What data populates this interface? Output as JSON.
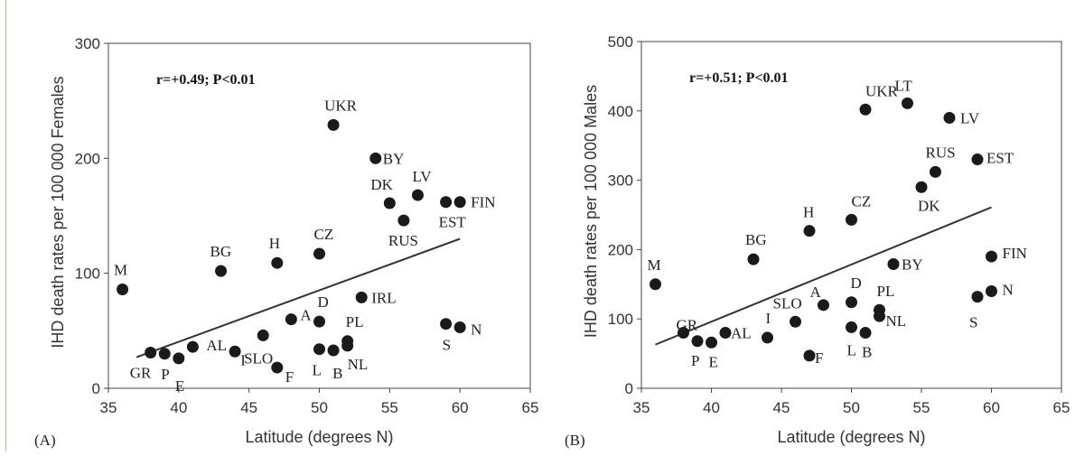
{
  "chart_data": [
    {
      "type": "scatter",
      "panel_label": "(A)",
      "xlabel": "Latitude (degrees N)",
      "ylabel": "IHD death rates per 100 000 Females",
      "annotation": "r=+0.49; P<0.01",
      "xlim": [
        35,
        65
      ],
      "ylim": [
        0,
        300
      ],
      "xticks": [
        35,
        40,
        45,
        50,
        55,
        60,
        65
      ],
      "yticks": [
        0,
        100,
        200,
        300
      ],
      "grid": false,
      "points": [
        {
          "label": "M",
          "x": 36,
          "y": 86
        },
        {
          "label": "GR",
          "x": 38,
          "y": 31
        },
        {
          "label": "P",
          "x": 39,
          "y": 30
        },
        {
          "label": "E",
          "x": 40,
          "y": 26
        },
        {
          "label": "AL",
          "x": 41,
          "y": 36
        },
        {
          "label": "BG",
          "x": 43,
          "y": 102
        },
        {
          "label": "SLO",
          "x": 44,
          "y": 32
        },
        {
          "label": "I",
          "x": 46,
          "y": 46
        },
        {
          "label": "H",
          "x": 47,
          "y": 109
        },
        {
          "label": "F",
          "x": 47,
          "y": 18
        },
        {
          "label": "A",
          "x": 48,
          "y": 60
        },
        {
          "label": "CZ",
          "x": 50,
          "y": 117
        },
        {
          "label": "D",
          "x": 50,
          "y": 58
        },
        {
          "label": "L",
          "x": 50,
          "y": 34
        },
        {
          "label": "B",
          "x": 51,
          "y": 33
        },
        {
          "label": "UKR",
          "x": 51,
          "y": 229
        },
        {
          "label": "PL",
          "x": 52,
          "y": 41
        },
        {
          "label": "NL",
          "x": 52,
          "y": 37
        },
        {
          "label": "IRL",
          "x": 53,
          "y": 79
        },
        {
          "label": "BY",
          "x": 54,
          "y": 200
        },
        {
          "label": "DK",
          "x": 55,
          "y": 161
        },
        {
          "label": "RUS",
          "x": 56,
          "y": 146
        },
        {
          "label": "LV",
          "x": 57,
          "y": 168
        },
        {
          "label": "EST",
          "x": 59,
          "y": 162
        },
        {
          "label": "FIN",
          "x": 60,
          "y": 162
        },
        {
          "label": "S",
          "x": 59,
          "y": 56
        },
        {
          "label": "N",
          "x": 60,
          "y": 53
        }
      ],
      "regression": {
        "x": [
          37,
          60
        ],
        "y": [
          27,
          130
        ]
      }
    },
    {
      "type": "scatter",
      "panel_label": "(B)",
      "xlabel": "Latitude (degrees N)",
      "ylabel": "IHD death rates per 100 000 Males",
      "annotation": "r=+0.51; P<0.01",
      "xlim": [
        35,
        65
      ],
      "ylim": [
        0,
        500
      ],
      "xticks": [
        35,
        40,
        45,
        50,
        55,
        60,
        65
      ],
      "yticks": [
        0,
        100,
        200,
        300,
        400,
        500
      ],
      "grid": false,
      "points": [
        {
          "label": "M",
          "x": 36,
          "y": 150
        },
        {
          "label": "GR",
          "x": 38,
          "y": 80
        },
        {
          "label": "P",
          "x": 39,
          "y": 68
        },
        {
          "label": "E",
          "x": 40,
          "y": 66
        },
        {
          "label": "AL",
          "x": 41,
          "y": 80
        },
        {
          "label": "BG",
          "x": 43,
          "y": 186
        },
        {
          "label": "I",
          "x": 44,
          "y": 73
        },
        {
          "label": "SLO",
          "x": 46,
          "y": 96
        },
        {
          "label": "H",
          "x": 47,
          "y": 227
        },
        {
          "label": "F",
          "x": 47,
          "y": 47
        },
        {
          "label": "A",
          "x": 48,
          "y": 120
        },
        {
          "label": "CZ",
          "x": 50,
          "y": 243
        },
        {
          "label": "D",
          "x": 50,
          "y": 124
        },
        {
          "label": "L",
          "x": 50,
          "y": 88
        },
        {
          "label": "B",
          "x": 51,
          "y": 80
        },
        {
          "label": "UKR",
          "x": 51,
          "y": 402
        },
        {
          "label": "PL",
          "x": 52,
          "y": 113
        },
        {
          "label": "NL",
          "x": 52,
          "y": 104
        },
        {
          "label": "BY",
          "x": 53,
          "y": 179
        },
        {
          "label": "LT",
          "x": 54,
          "y": 411
        },
        {
          "label": "DK",
          "x": 55,
          "y": 290
        },
        {
          "label": "RUS",
          "x": 56,
          "y": 312
        },
        {
          "label": "LV",
          "x": 57,
          "y": 390
        },
        {
          "label": "EST",
          "x": 59,
          "y": 330
        },
        {
          "label": "FIN",
          "x": 60,
          "y": 190
        },
        {
          "label": "S",
          "x": 59,
          "y": 132
        },
        {
          "label": "N",
          "x": 60,
          "y": 140
        }
      ],
      "regression": {
        "x": [
          36,
          60
        ],
        "y": [
          63,
          261
        ]
      }
    }
  ]
}
